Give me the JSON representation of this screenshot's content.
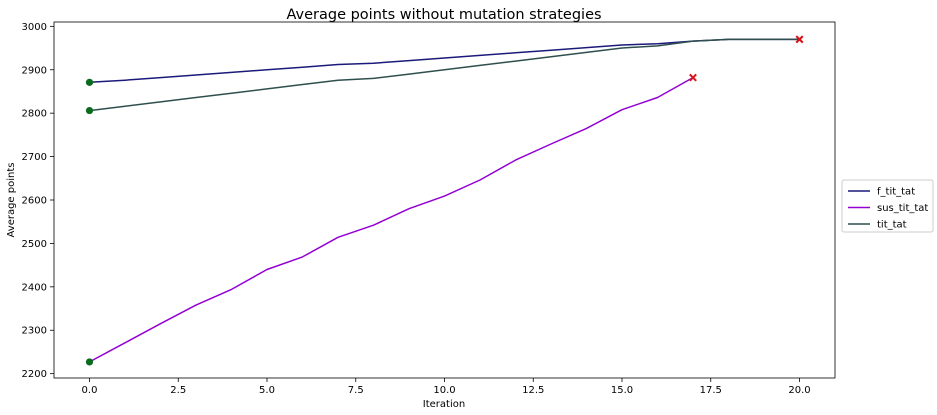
{
  "chart_data": {
    "type": "line",
    "title": "Average points without mutation strategies",
    "xlabel": "Iteration",
    "ylabel": "Average points",
    "xlim": [
      -1.0,
      21.0
    ],
    "ylim": [
      2190,
      3010
    ],
    "xticks": [
      0.0,
      2.5,
      5.0,
      7.5,
      10.0,
      12.5,
      15.0,
      17.5,
      20.0
    ],
    "xtick_labels": [
      "0.0",
      "2.5",
      "5.0",
      "7.5",
      "10.0",
      "12.5",
      "15.0",
      "17.5",
      "20.0"
    ],
    "yticks": [
      2200,
      2300,
      2400,
      2500,
      2600,
      2700,
      2800,
      2900,
      3000
    ],
    "ytick_labels": [
      "2200",
      "2300",
      "2400",
      "2500",
      "2600",
      "2700",
      "2800",
      "2900",
      "3000"
    ],
    "grid": false,
    "legend_position": "center-right-outside",
    "start_marker_color": "#0a6b1f",
    "end_marker_color": "#d6161c",
    "series": [
      {
        "name": "f_tit_tat",
        "color": "#1a1a7a",
        "x": [
          0,
          1,
          2,
          3,
          4,
          5,
          6,
          7,
          8,
          9,
          10,
          11,
          12,
          13,
          14,
          15,
          16,
          17,
          18,
          19,
          20
        ],
        "values": [
          2871,
          2876,
          2882,
          2888,
          2894,
          2900,
          2906,
          2912,
          2915,
          2921,
          2927,
          2933,
          2939,
          2945,
          2951,
          2957,
          2960,
          2966,
          2970,
          2970,
          2970
        ]
      },
      {
        "name": "sus_tit_tat",
        "color": "#9400d3",
        "x": [
          0,
          1,
          2,
          3,
          4,
          5,
          6,
          7,
          8,
          9,
          10,
          11,
          12,
          13,
          14,
          15,
          16,
          17
        ],
        "values": [
          2227,
          2271,
          2315,
          2358,
          2394,
          2440,
          2469,
          2514,
          2542,
          2580,
          2609,
          2646,
          2692,
          2729,
          2765,
          2808,
          2836,
          2882
        ]
      },
      {
        "name": "tit_tat",
        "color": "#2f4f4f",
        "x": [
          0,
          1,
          2,
          3,
          4,
          5,
          6,
          7,
          8,
          9,
          10,
          11,
          12,
          13,
          14,
          15,
          16,
          17,
          18,
          19,
          20
        ],
        "values": [
          2806,
          2816,
          2826,
          2836,
          2846,
          2856,
          2866,
          2876,
          2880,
          2890,
          2900,
          2910,
          2920,
          2930,
          2940,
          2950,
          2955,
          2966,
          2970,
          2970,
          2970
        ]
      }
    ]
  }
}
